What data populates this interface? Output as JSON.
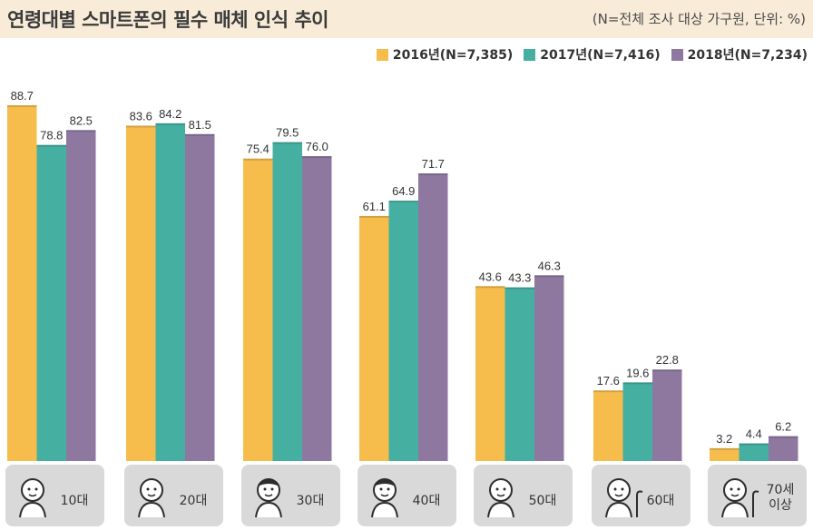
{
  "header": {
    "title": "연령대별 스마트폰의 필수 매체 인식 추이",
    "subtitle": "(N=전체 조사 대상 가구원, 단위: %)"
  },
  "colors": {
    "header_bg": "#f8ecd8",
    "series_2016": "#f6bd4d",
    "series_2017": "#45b0a2",
    "series_2018": "#8e78a0",
    "category_box": "#d9d9d9"
  },
  "chart_data": {
    "type": "bar",
    "categories": [
      "10대",
      "20대",
      "30대",
      "40대",
      "50대",
      "60대",
      "70세 이상"
    ],
    "series": [
      {
        "name": "2016년(N=7,385)",
        "values": [
          88.7,
          83.6,
          75.4,
          61.1,
          43.6,
          17.6,
          3.2
        ]
      },
      {
        "name": "2017년(N=7,416)",
        "values": [
          78.8,
          84.2,
          79.5,
          64.9,
          43.3,
          19.6,
          4.4
        ]
      },
      {
        "name": "2018년(N=7,234)",
        "values": [
          82.5,
          81.5,
          76.0,
          71.7,
          46.3,
          22.8,
          6.2
        ]
      }
    ],
    "ylim": [
      0,
      100
    ],
    "grid": false,
    "legend": "top-right",
    "icons": [
      "child-face-icon",
      "young-adult-icon",
      "adult-suit-icon",
      "middle-aged-icon",
      "older-adult-icon",
      "elderly-cane-icon",
      "elderly-walker-icon"
    ]
  }
}
